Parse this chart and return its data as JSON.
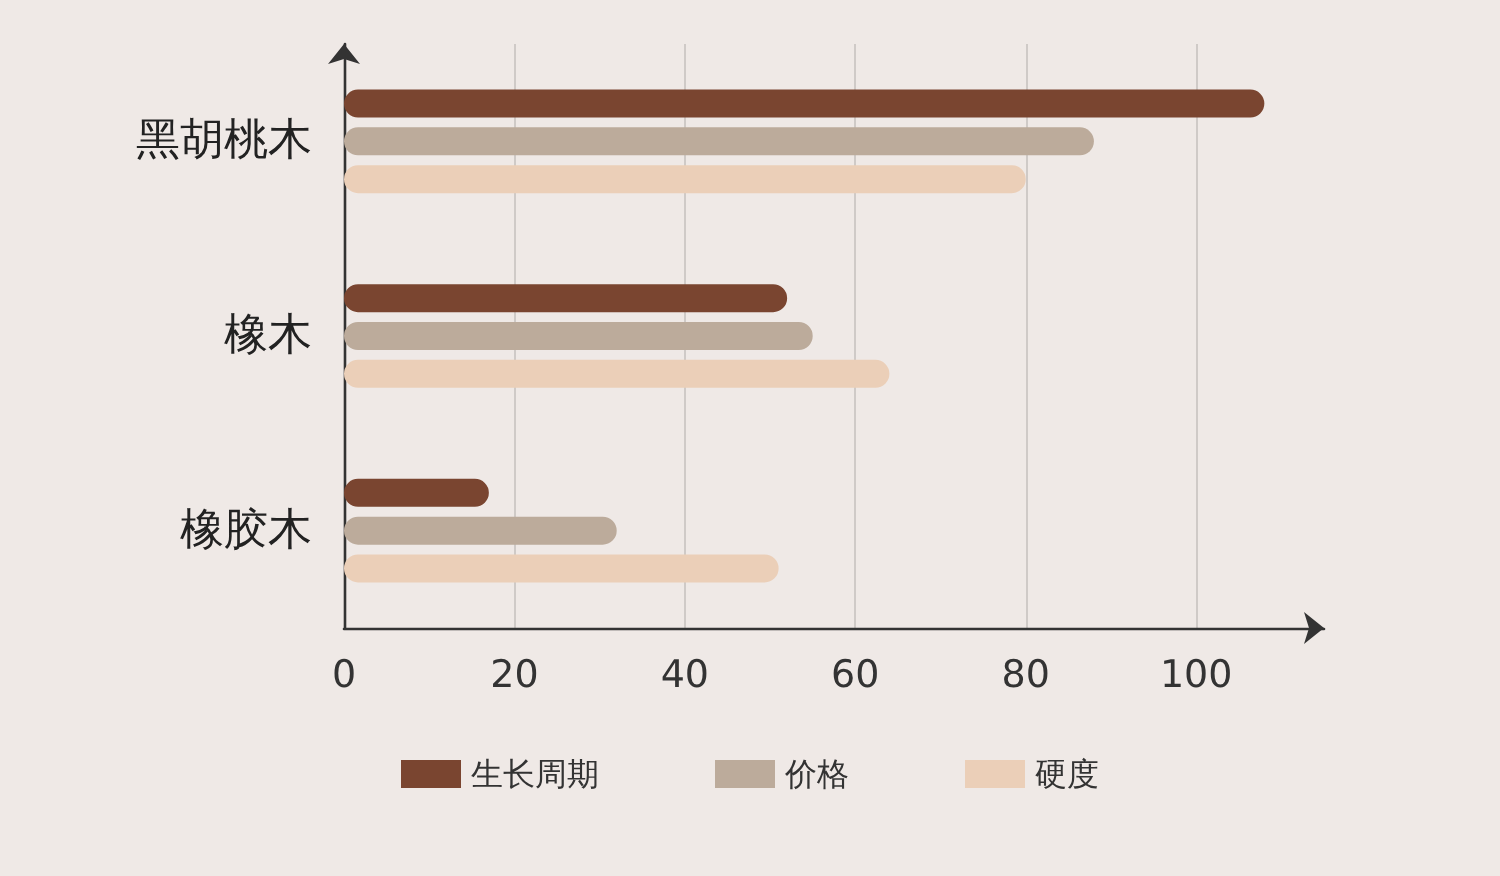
{
  "chart_data": {
    "type": "bar",
    "orientation": "horizontal",
    "categories": [
      "黑胡桃木",
      "橡木",
      "橡胶木"
    ],
    "series": [
      {
        "name": "生长周期",
        "color": "#7a4530",
        "values": [
          108,
          52,
          17
        ]
      },
      {
        "name": "价格",
        "color": "#bcab9b",
        "values": [
          88,
          55,
          32
        ]
      },
      {
        "name": "硬度",
        "color": "#ebcfb8",
        "values": [
          80,
          64,
          51
        ]
      }
    ],
    "xlim": [
      0,
      115
    ],
    "xticks": [
      0,
      20,
      40,
      60,
      80,
      100
    ],
    "grid": "x",
    "legend": "bottom"
  }
}
